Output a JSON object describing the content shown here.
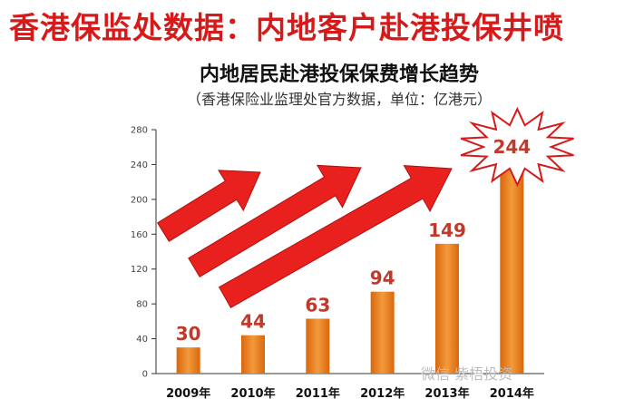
{
  "headline": "香港保监处数据：内地客户赴港投保井喷",
  "watermark": "微信  紫梧投资",
  "colors": {
    "bar": "#e8801f",
    "arrow": "#e8211f",
    "label": "#c0392b",
    "headline": "#d61a1a"
  },
  "chart_data": {
    "type": "bar",
    "title": "内地居民赴港投保保费增长趋势",
    "subtitle": "（香港保险业监理处官方数据，单位：亿港元）",
    "categories": [
      "2009年",
      "2010年",
      "2011年",
      "2012年",
      "2013年",
      "2014年"
    ],
    "values": [
      30,
      44,
      63,
      94,
      149,
      244
    ],
    "ylim": [
      0,
      280
    ],
    "yticks": [
      0,
      40,
      80,
      120,
      160,
      200,
      240,
      280
    ],
    "grid": false,
    "highlight": {
      "category": "2014年",
      "style": "starburst"
    }
  }
}
